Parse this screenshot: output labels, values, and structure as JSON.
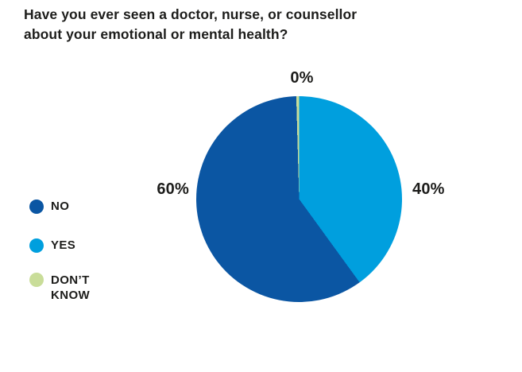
{
  "header": {
    "line1": "Have you ever seen a doctor, nurse, or counsellor",
    "line2": "about your emotional or mental health?"
  },
  "chart_data": {
    "type": "pie",
    "title": "Have you ever seen a doctor, nurse, or counsellor about your emotional or mental health?",
    "slices": [
      {
        "label": "NO",
        "value": 60,
        "pct_label": "60%",
        "color": "#0b56a3"
      },
      {
        "label": "YES",
        "value": 40,
        "pct_label": "40%",
        "color": "#009fde"
      },
      {
        "label": "DON’T KNOW",
        "value": 0,
        "pct_label": "0%",
        "color": "#c9dd99"
      }
    ],
    "start_angle_deg": 0,
    "direction": "clockwise",
    "draw_order": [
      1,
      0,
      2
    ],
    "min_slice_deg_for_zero": 1.6,
    "legend_position": "left",
    "text_color": "#1d1d1b",
    "background_color": "#ffffff"
  }
}
